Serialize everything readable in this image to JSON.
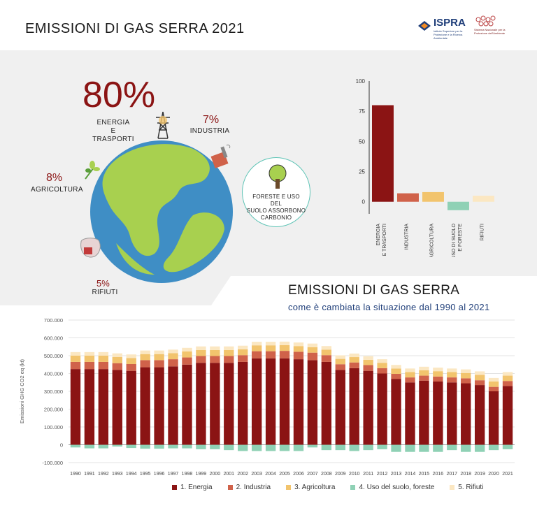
{
  "header": {
    "title": "EMISSIONI DI GAS SERRA 2021",
    "logo_ispra": "ISPRA",
    "logo_ispra_sub": "Istituto Superiore per la Protezione e la Ricerca Ambientale",
    "logo_snpa_sub": "Sistema Nazionale per la Protezione dell'Ambiente"
  },
  "infographic": {
    "energia_pct": "80%",
    "energia_label_1": "ENERGIA",
    "energia_label_2": "E TRASPORTI",
    "industria_pct": "7%",
    "industria_label": "INDUSTRIA",
    "agricoltura_pct": "8%",
    "agricoltura_label": "AGRICOLTURA",
    "rifiuti_pct": "5%",
    "rifiuti_label": "RIFIUTI",
    "foreste_text_1": "FORESTE E USO DEL",
    "foreste_text_2": "SUOLO ASSORBONO",
    "foreste_text_3": "CARBONIO"
  },
  "section": {
    "title": "EMISSIONI DI GAS SERRA",
    "subtitle": "come è cambiata la situazione dal 1990 al 2021"
  },
  "colors": {
    "energia": "#8b1414",
    "industria": "#d0624a",
    "agricoltura": "#f2c46d",
    "uso_suolo": "#8fd1b5",
    "rifiuti": "#fbe7c2",
    "title_blue": "#1f3e79"
  },
  "chart_data": [
    {
      "type": "bar",
      "categories": [
        "ENERGIA E TRASPORTI",
        "INDUSTRIA",
        "AGRICOLTURA",
        "USO DI SUOLO E FORESTE",
        "RIFIUTI"
      ],
      "values": [
        80,
        7,
        8,
        -7,
        5
      ],
      "ylim": [
        -10,
        100
      ],
      "yticks": [
        0,
        25,
        50,
        75,
        100
      ],
      "colors": [
        "#8b1414",
        "#d0624a",
        "#f2c46d",
        "#8fd1b5",
        "#fbe7c2"
      ]
    },
    {
      "type": "bar",
      "stacked": true,
      "ylabel": "Emissioni GHG CO2 eq (kt)",
      "ylim": [
        -100000,
        700000
      ],
      "yticks": [
        -100000,
        0,
        100000,
        200000,
        300000,
        400000,
        500000,
        600000,
        700000
      ],
      "ytick_labels": [
        "-100.000",
        "0",
        "100.000",
        "200.000",
        "300.000",
        "400.000",
        "500.000",
        "600.000",
        "700.000"
      ],
      "categories": [
        "1990",
        "1991",
        "1992",
        "1993",
        "1994",
        "1995",
        "1996",
        "1997",
        "1998",
        "1999",
        "2000",
        "2001",
        "2002",
        "2003",
        "2004",
        "2005",
        "2006",
        "2007",
        "2008",
        "2009",
        "2010",
        "2011",
        "2012",
        "2013",
        "2014",
        "2015",
        "2016",
        "2017",
        "2018",
        "2019",
        "2020",
        "2021"
      ],
      "series": [
        {
          "name": "1. Energia",
          "values": [
            425000,
            425000,
            425000,
            420000,
            415000,
            435000,
            435000,
            440000,
            450000,
            460000,
            460000,
            460000,
            465000,
            485000,
            485000,
            485000,
            480000,
            475000,
            465000,
            420000,
            430000,
            415000,
            400000,
            370000,
            350000,
            360000,
            355000,
            350000,
            345000,
            335000,
            300000,
            330000
          ]
        },
        {
          "name": "2. Industria",
          "values": [
            40000,
            40000,
            40000,
            38000,
            38000,
            40000,
            40000,
            40000,
            40000,
            38000,
            38000,
            38000,
            38000,
            40000,
            40000,
            42000,
            42000,
            42000,
            38000,
            32000,
            32000,
            32000,
            30000,
            28000,
            28000,
            28000,
            28000,
            28000,
            28000,
            27000,
            25000,
            28000
          ]
        },
        {
          "name": "3. Agricoltura",
          "values": [
            35000,
            35000,
            35000,
            35000,
            34000,
            34000,
            34000,
            34000,
            34000,
            34000,
            34000,
            34000,
            33000,
            33000,
            33000,
            32000,
            32000,
            31000,
            31000,
            30000,
            30000,
            30000,
            30000,
            30000,
            30000,
            30000,
            30000,
            30000,
            30000,
            30000,
            30000,
            30000
          ]
        },
        {
          "name": "4. Uso del suolo, foreste",
          "values": [
            -15000,
            -20000,
            -20000,
            -10000,
            -18000,
            -22000,
            -22000,
            -20000,
            -20000,
            -25000,
            -25000,
            -30000,
            -35000,
            -35000,
            -35000,
            -35000,
            -35000,
            -15000,
            -30000,
            -30000,
            -35000,
            -30000,
            -25000,
            -40000,
            -40000,
            -40000,
            -40000,
            -30000,
            -40000,
            -40000,
            -30000,
            -25000
          ]
        },
        {
          "name": "5. Rifiuti",
          "values": [
            20000,
            20000,
            20000,
            20000,
            20000,
            20000,
            20000,
            20000,
            20000,
            20000,
            20000,
            20000,
            20000,
            20000,
            20000,
            20000,
            20000,
            20000,
            20000,
            20000,
            20000,
            20000,
            20000,
            20000,
            20000,
            20000,
            20000,
            20000,
            20000,
            20000,
            20000,
            20000
          ]
        }
      ]
    }
  ]
}
